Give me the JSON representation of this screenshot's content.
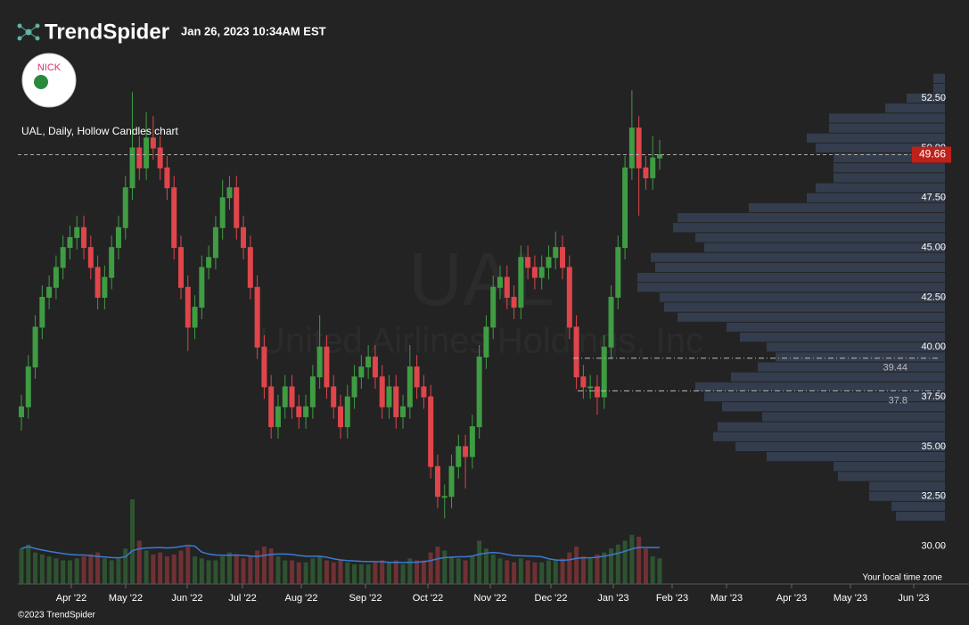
{
  "header": {
    "brand": "TrendSpider",
    "timestamp": "Jan 26, 2023 10:34AM EST",
    "logo_text": "NICK"
  },
  "chart_data": {
    "type": "candlestick",
    "title": "UAL, Daily, Hollow Candles chart",
    "watermark": {
      "symbol": "UAL",
      "name": "United Airlines Holdings, Inc"
    },
    "up_color": "#3f9c43",
    "down_color": "#e0454b",
    "ylim": [
      28.1,
      54.7
    ],
    "yticks": [
      {
        "value": 30,
        "label": "30.00"
      },
      {
        "value": 32.5,
        "label": "32.50"
      },
      {
        "value": 35,
        "label": "35.00"
      },
      {
        "value": 37.5,
        "label": "37.50"
      },
      {
        "value": 40,
        "label": "40.00"
      },
      {
        "value": 42.5,
        "label": "42.50"
      },
      {
        "value": 45,
        "label": "45.00"
      },
      {
        "value": 47.5,
        "label": "47.50"
      },
      {
        "value": 50,
        "label": "50.00"
      },
      {
        "value": 52.5,
        "label": "52.50"
      }
    ],
    "xticks": [
      "Apr '22",
      "May '22",
      "Jun '22",
      "Jul '22",
      "Aug '22",
      "Sep '22",
      "Oct '22",
      "Nov '22",
      "Dec '22",
      "Jan '23",
      "Feb '23",
      "Mar '23",
      "Apr '23",
      "May '23",
      "Jun '23"
    ],
    "candles": [
      [
        36.5,
        37.6,
        35.8,
        37
      ],
      [
        37,
        39.6,
        36.4,
        39
      ],
      [
        39,
        41.6,
        38.4,
        41
      ],
      [
        41,
        43.1,
        40.4,
        42.5
      ],
      [
        42.5,
        43.6,
        41.9,
        43
      ],
      [
        43,
        44.6,
        42.4,
        44
      ],
      [
        44,
        45.6,
        43.4,
        45
      ],
      [
        45,
        46.1,
        44.4,
        45.5
      ],
      [
        45.5,
        46.6,
        44.9,
        46
      ],
      [
        46,
        46.6,
        44.4,
        45
      ],
      [
        45,
        45.6,
        43.4,
        44
      ],
      [
        44,
        44.6,
        41.9,
        42.5
      ],
      [
        42.5,
        44.1,
        41.9,
        43.5
      ],
      [
        43.5,
        45.6,
        42.9,
        45
      ],
      [
        45,
        46.6,
        44.4,
        46
      ],
      [
        46,
        48.6,
        45.4,
        48
      ],
      [
        48,
        52.8,
        47.4,
        50
      ],
      [
        50,
        50.6,
        48.4,
        49
      ],
      [
        49,
        51.8,
        48.4,
        50.5
      ],
      [
        50.5,
        51.6,
        49.4,
        50
      ],
      [
        50,
        50.6,
        48.4,
        49
      ],
      [
        49,
        49.6,
        47.4,
        48
      ],
      [
        48,
        48.6,
        44.4,
        45
      ],
      [
        45,
        45.6,
        42.4,
        43
      ],
      [
        43,
        43.6,
        39.8,
        41
      ],
      [
        41,
        42.6,
        40.4,
        42
      ],
      [
        42,
        44.6,
        41.4,
        44
      ],
      [
        44,
        45.1,
        43.4,
        44.5
      ],
      [
        44.5,
        46.6,
        43.9,
        46
      ],
      [
        46,
        48.4,
        45.4,
        47.5
      ],
      [
        47.5,
        48.6,
        46.9,
        48
      ],
      [
        48,
        48.6,
        45.4,
        46
      ],
      [
        46,
        46.6,
        44.4,
        45
      ],
      [
        45,
        45.6,
        42.4,
        43
      ],
      [
        43,
        43.6,
        39.4,
        40
      ],
      [
        40,
        40.6,
        37.4,
        38
      ],
      [
        38,
        38.6,
        35.4,
        36
      ],
      [
        36,
        37.6,
        35.4,
        37
      ],
      [
        37,
        38.6,
        36.4,
        38
      ],
      [
        38,
        38.6,
        36.4,
        37
      ],
      [
        37,
        37.6,
        35.9,
        36.5
      ],
      [
        36.5,
        37.6,
        35.9,
        37
      ],
      [
        37,
        39.1,
        36.4,
        38.5
      ],
      [
        38.5,
        41.6,
        37.9,
        40
      ],
      [
        40,
        40.6,
        37.4,
        38
      ],
      [
        38,
        38.6,
        36.4,
        37
      ],
      [
        37,
        37.6,
        35.4,
        36
      ],
      [
        36,
        38.1,
        35.4,
        37.5
      ],
      [
        37.5,
        39.1,
        36.9,
        38.5
      ],
      [
        38.5,
        39.6,
        37.9,
        39
      ],
      [
        39,
        40.1,
        38.4,
        39.5
      ],
      [
        39.5,
        40.1,
        37.9,
        38.5
      ],
      [
        38.5,
        39.1,
        36.4,
        37
      ],
      [
        37,
        38.6,
        36.4,
        38
      ],
      [
        38,
        38.6,
        35.9,
        36.5
      ],
      [
        36.5,
        37.6,
        35.9,
        37
      ],
      [
        37,
        40.1,
        36.4,
        39
      ],
      [
        39,
        39.6,
        37.4,
        38
      ],
      [
        38,
        38.6,
        36.9,
        37.5
      ],
      [
        37.5,
        38.1,
        33.4,
        34
      ],
      [
        34,
        34.6,
        31.9,
        32.5
      ],
      [
        32.5,
        33.1,
        31.4,
        32.5
      ],
      [
        32.5,
        34.6,
        31.9,
        34
      ],
      [
        34,
        35.6,
        33.4,
        35
      ],
      [
        35,
        35.6,
        32.9,
        34.5
      ],
      [
        34.5,
        36.6,
        33.9,
        36
      ],
      [
        36,
        40.1,
        35.4,
        39.5
      ],
      [
        39.5,
        41.6,
        38.9,
        41
      ],
      [
        41,
        43.6,
        40.4,
        43
      ],
      [
        43,
        44.1,
        42.4,
        43.5
      ],
      [
        43.5,
        44.1,
        41.9,
        42.5
      ],
      [
        42.5,
        43.1,
        41.4,
        42
      ],
      [
        42,
        45.1,
        41.4,
        44.5
      ],
      [
        44.5,
        45.1,
        43.4,
        44
      ],
      [
        44,
        44.6,
        42.9,
        43.5
      ],
      [
        43.5,
        44.6,
        42.9,
        44
      ],
      [
        44,
        45.1,
        43.4,
        44.5
      ],
      [
        44.5,
        45.8,
        43.9,
        45
      ],
      [
        45,
        45.6,
        43.4,
        44
      ],
      [
        44,
        44.6,
        40.4,
        41
      ],
      [
        41,
        41.6,
        37.9,
        38.5
      ],
      [
        38.5,
        39.1,
        37.4,
        38
      ],
      [
        38,
        38.6,
        37.4,
        38
      ],
      [
        38,
        38.6,
        36.6,
        37.5
      ],
      [
        37.5,
        40.6,
        36.9,
        40
      ],
      [
        40,
        43.1,
        39.4,
        42.5
      ],
      [
        42.5,
        45.6,
        41.9,
        45
      ],
      [
        45,
        49.6,
        44.4,
        49
      ],
      [
        49,
        52.9,
        48.4,
        51
      ],
      [
        51,
        51.6,
        46.6,
        49
      ],
      [
        49,
        49.6,
        47.9,
        48.5
      ],
      [
        48.5,
        50.6,
        47.9,
        49.5
      ],
      [
        49.5,
        50.4,
        48.9,
        49.66
      ]
    ],
    "volumes": [
      18,
      20,
      16,
      15,
      14,
      13,
      12,
      12,
      13,
      14,
      15,
      16,
      13,
      12,
      13,
      18,
      43,
      22,
      17,
      15,
      16,
      14,
      15,
      17,
      19,
      14,
      13,
      12,
      12,
      14,
      16,
      15,
      13,
      14,
      17,
      19,
      18,
      14,
      12,
      12,
      11,
      11,
      13,
      14,
      12,
      11,
      12,
      11,
      10,
      10,
      10,
      11,
      12,
      11,
      12,
      10,
      13,
      12,
      12,
      16,
      19,
      17,
      14,
      13,
      12,
      14,
      22,
      18,
      15,
      13,
      12,
      11,
      13,
      12,
      11,
      11,
      12,
      12,
      13,
      16,
      19,
      14,
      13,
      15,
      16,
      18,
      20,
      22,
      25,
      24,
      18,
      14,
      13
    ],
    "volume_profile": {
      "prices": [
        53.5,
        53,
        52.5,
        52,
        51.5,
        51,
        50.5,
        50,
        49.5,
        49,
        48.5,
        48,
        47.5,
        47,
        46.5,
        46,
        45.5,
        45,
        44.5,
        44,
        43.5,
        43,
        42.5,
        42,
        41.5,
        41,
        40.5,
        40,
        39.5,
        39,
        38.5,
        38,
        37.5,
        37,
        36.5,
        36,
        35.5,
        35,
        34.5,
        34,
        33.5,
        33,
        32.5,
        32,
        31.5
      ],
      "values": [
        13,
        13,
        43,
        67,
        130,
        130,
        155,
        145,
        125,
        125,
        125,
        145,
        155,
        220,
        300,
        305,
        280,
        270,
        330,
        325,
        345,
        345,
        320,
        315,
        300,
        245,
        230,
        200,
        190,
        210,
        240,
        280,
        270,
        250,
        205,
        255,
        260,
        235,
        200,
        125,
        120,
        85,
        85,
        60,
        55
      ]
    },
    "last_price": 49.66,
    "levels": [
      39.44,
      37.8
    ],
    "timezone_note": "Your local time zone",
    "copyright": "©2023 TrendSpider"
  }
}
